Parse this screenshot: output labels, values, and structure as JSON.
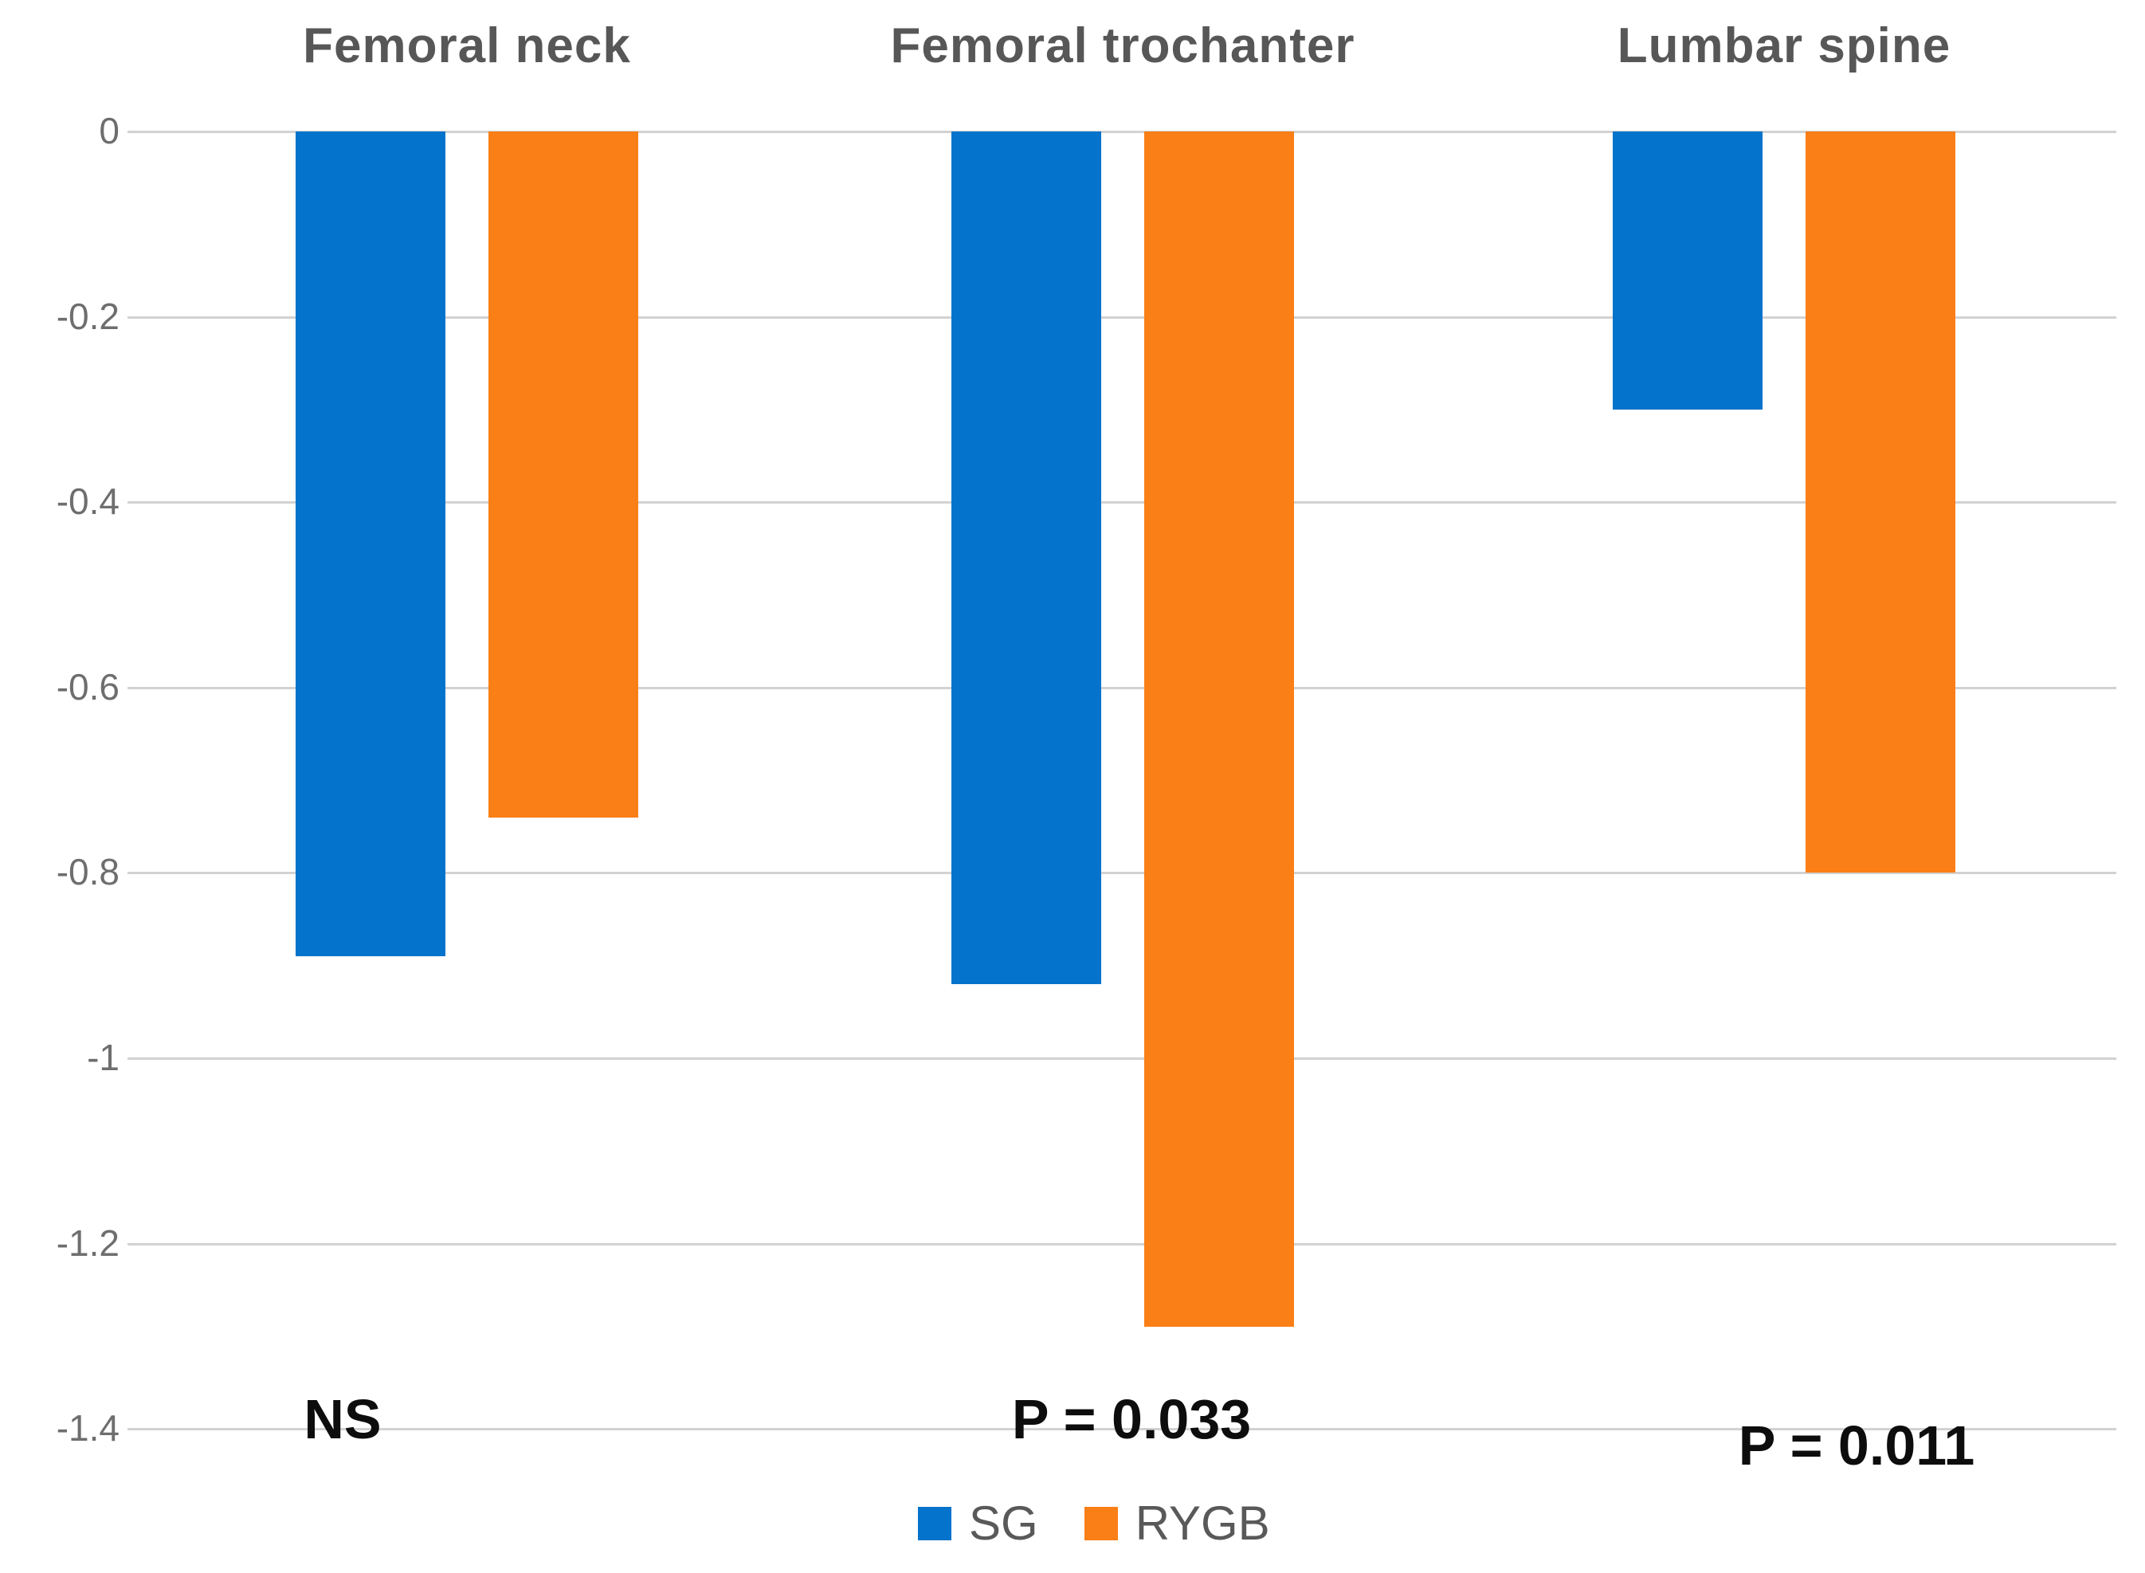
{
  "chart_data": {
    "type": "bar",
    "title": "",
    "categories": [
      "Femoral neck",
      "Femoral trochanter",
      "Lumbar spine"
    ],
    "series": [
      {
        "name": "SG",
        "color": "#0473CB",
        "values": [
          -0.89,
          -0.92,
          -0.3
        ]
      },
      {
        "name": "RYGB",
        "color": "#FA7F16",
        "values": [
          -0.74,
          -1.29,
          -0.8
        ]
      }
    ],
    "annotations": [
      {
        "group": "Femoral neck",
        "text": "NS"
      },
      {
        "group": "Femoral trochanter",
        "text": "P = 0.033"
      },
      {
        "group": "Lumbar spine",
        "text": "P = 0.011"
      }
    ],
    "y_ticks": [
      "0",
      "-0.2",
      "-0.4",
      "-0.6",
      "-0.8",
      "-1",
      "-1.2",
      "-1.4"
    ],
    "ylim": [
      0,
      -1.4
    ],
    "grid": true,
    "legend_position": "bottom",
    "legend_entries": [
      "SG",
      "RYGB"
    ]
  },
  "colors": {
    "background": "#ffffff",
    "gridline": "#d2d2d2",
    "column_title": "#575757",
    "tick_label": "#6e6e6e",
    "annotation": "#0d0d0d",
    "legend_text": "#595959",
    "series_sg": "#0473CB",
    "series_rygb": "#FA7F16"
  }
}
